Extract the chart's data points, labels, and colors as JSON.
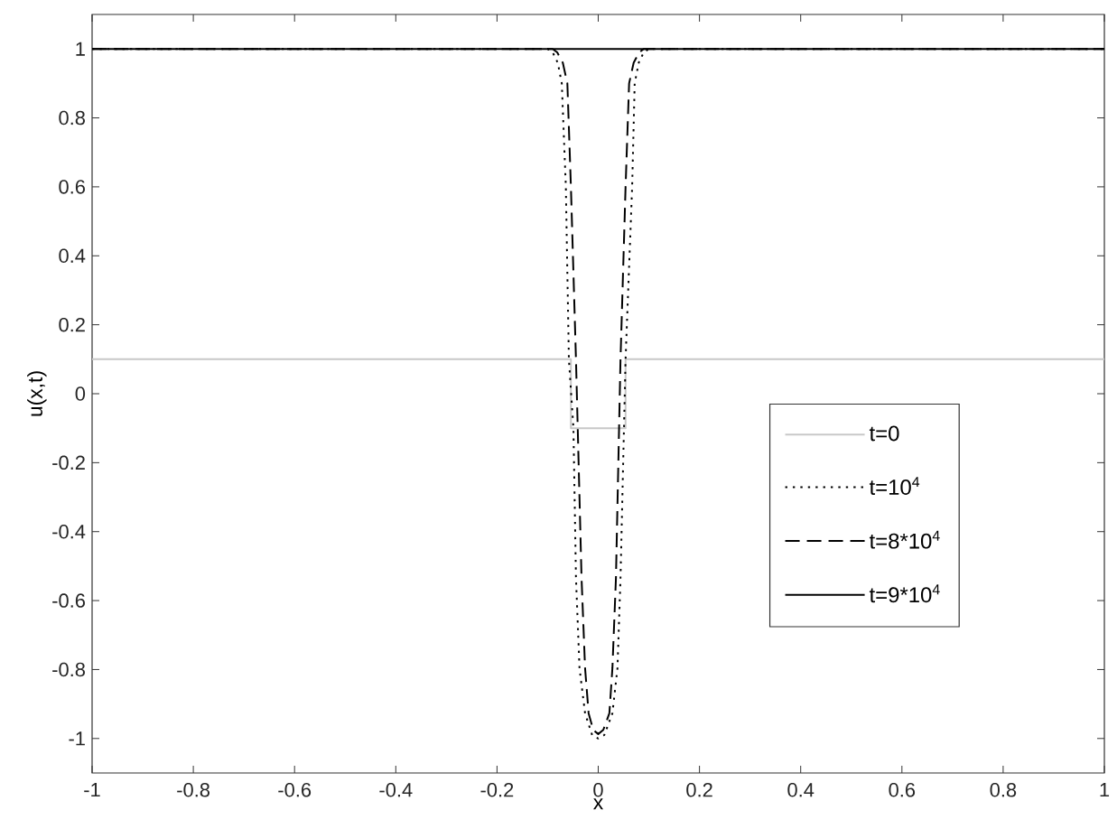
{
  "chart_data": {
    "type": "line",
    "xlabel": "x",
    "ylabel": "u(x,t)",
    "xlim": [
      -1,
      1
    ],
    "ylim": [
      -1.1,
      1.1
    ],
    "xticks": [
      -1,
      -0.8,
      -0.6,
      -0.4,
      -0.2,
      0,
      0.2,
      0.4,
      0.6,
      0.8,
      1
    ],
    "yticks": [
      -1,
      -0.8,
      -0.6,
      -0.4,
      -0.2,
      0,
      0.2,
      0.4,
      0.6,
      0.8,
      1
    ],
    "grid": false,
    "legend": "right",
    "series": [
      {
        "name": "t=0",
        "color": "#c8c8c8",
        "line_style": "solid",
        "x": [
          -1,
          -0.054,
          -0.054,
          0.054,
          0.054,
          1
        ],
        "values": [
          0.1,
          0.1,
          -0.1,
          -0.1,
          0.1,
          0.1
        ]
      },
      {
        "name": "t=10$^{4}$",
        "color": "#000000",
        "line_style": "dotted",
        "x": [
          -1,
          -0.1,
          -0.09,
          -0.08,
          -0.072,
          -0.064,
          -0.058,
          -0.049,
          -0.044,
          -0.037,
          -0.026,
          -0.012,
          0,
          0.012,
          0.028,
          0.038,
          0.044,
          0.054,
          0.067,
          0.072,
          0.08,
          0.09,
          0.1,
          1
        ],
        "values": [
          1,
          1,
          0.99,
          0.96,
          0.9,
          0.6,
          0.1,
          -0.1,
          -0.534,
          -0.796,
          -0.927,
          -0.99,
          -1,
          -0.99,
          -0.927,
          -0.796,
          -0.534,
          0.1,
          0.6,
          0.9,
          0.96,
          0.99,
          1,
          1
        ]
      },
      {
        "name": "t=8*10$^{4}$",
        "color": "#000000",
        "line_style": "dashed",
        "x": [
          -1,
          -0.09,
          -0.081,
          -0.07,
          -0.061,
          -0.054,
          -0.044,
          -0.033,
          -0.026,
          -0.019,
          -0.01,
          0,
          0.01,
          0.022,
          0.028,
          0.035,
          0.044,
          0.054,
          0.061,
          0.07,
          0.081,
          0.09,
          1
        ],
        "values": [
          1,
          1,
          0.99,
          0.96,
          0.9,
          0.6,
          0.1,
          -0.534,
          -0.796,
          -0.927,
          -0.975,
          -0.987,
          -0.975,
          -0.927,
          -0.796,
          -0.534,
          0.1,
          0.6,
          0.9,
          0.96,
          0.99,
          1,
          1
        ]
      },
      {
        "name": "t=9*10$^{4}$",
        "color": "#000000",
        "line_style": "solid",
        "x": [
          -1,
          1
        ],
        "values": [
          1,
          1
        ]
      }
    ]
  }
}
